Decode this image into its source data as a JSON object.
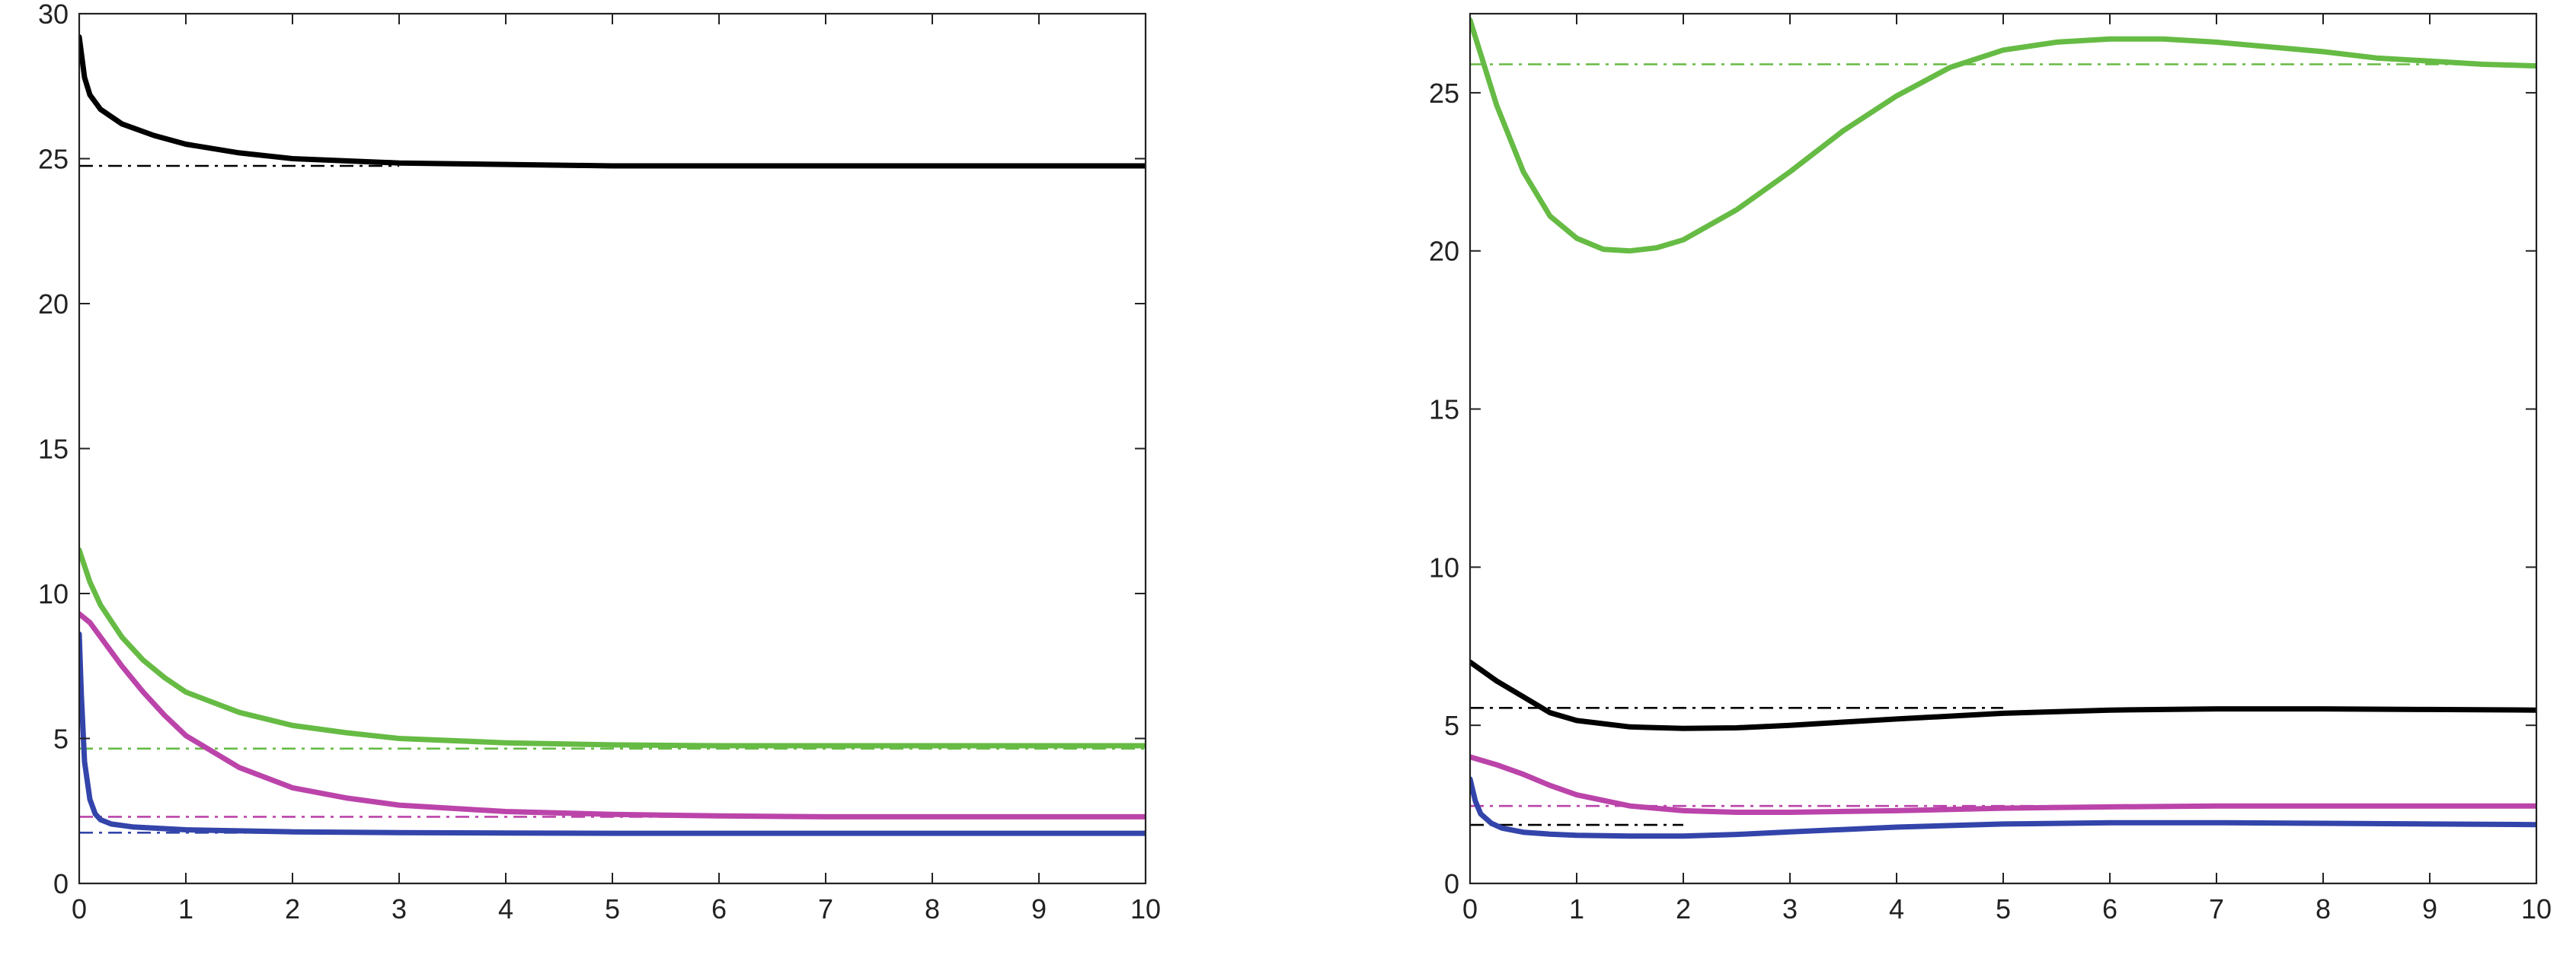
{
  "chart_data": [
    {
      "type": "line",
      "title": "",
      "xlabel": "",
      "ylabel": "",
      "xlim": [
        0,
        10
      ],
      "ylim": [
        0,
        30
      ],
      "xticks": [
        0,
        1,
        2,
        3,
        4,
        5,
        6,
        7,
        8,
        9,
        10
      ],
      "yticks": [
        0,
        5,
        10,
        15,
        20,
        25,
        30
      ],
      "grid": false,
      "legend": "none",
      "series": [
        {
          "color": "#000000",
          "style": "solid",
          "x": [
            0,
            0.05,
            0.1,
            0.2,
            0.4,
            0.7,
            1,
            1.5,
            2,
            3,
            4,
            5,
            6,
            7,
            8,
            9,
            10
          ],
          "y": [
            29.2,
            27.8,
            27.2,
            26.7,
            26.2,
            25.8,
            25.5,
            25.2,
            25.0,
            24.85,
            24.8,
            24.75,
            24.75,
            24.75,
            24.75,
            24.75,
            24.75
          ]
        },
        {
          "color": "#66bb44",
          "style": "solid",
          "x": [
            0,
            0.1,
            0.2,
            0.4,
            0.6,
            0.8,
            1,
            1.5,
            2,
            2.5,
            3,
            4,
            5,
            6,
            7,
            8,
            9,
            10
          ],
          "y": [
            11.5,
            10.4,
            9.6,
            8.5,
            7.7,
            7.1,
            6.6,
            5.9,
            5.45,
            5.2,
            5.0,
            4.85,
            4.78,
            4.75,
            4.75,
            4.75,
            4.75,
            4.75
          ]
        },
        {
          "color": "#bb44aa",
          "style": "solid",
          "x": [
            0,
            0.1,
            0.2,
            0.4,
            0.6,
            0.8,
            1,
            1.5,
            2,
            2.5,
            3,
            4,
            5,
            6,
            7,
            8,
            9,
            10
          ],
          "y": [
            9.3,
            9.0,
            8.5,
            7.5,
            6.6,
            5.8,
            5.1,
            4.0,
            3.3,
            2.95,
            2.7,
            2.48,
            2.38,
            2.33,
            2.3,
            2.3,
            2.3,
            2.3
          ]
        },
        {
          "color": "#3344aa",
          "style": "solid",
          "x": [
            0,
            0.02,
            0.05,
            0.1,
            0.15,
            0.2,
            0.3,
            0.5,
            1,
            2,
            3,
            4,
            5,
            6,
            7,
            8,
            9,
            10
          ],
          "y": [
            8.6,
            6.5,
            4.2,
            2.9,
            2.4,
            2.2,
            2.05,
            1.95,
            1.85,
            1.78,
            1.75,
            1.74,
            1.73,
            1.73,
            1.73,
            1.73,
            1.73,
            1.73
          ]
        },
        {
          "color": "#000000",
          "style": "dashdot",
          "x": [
            0,
            3
          ],
          "y": [
            24.75,
            24.75
          ]
        },
        {
          "color": "#66bb44",
          "style": "dashdot",
          "x": [
            0,
            10
          ],
          "y": [
            4.65,
            4.65
          ]
        },
        {
          "color": "#bb44aa",
          "style": "dashdot",
          "x": [
            0,
            10
          ],
          "y": [
            2.3,
            2.3
          ]
        },
        {
          "color": "#3344aa",
          "style": "dashdot",
          "x": [
            0,
            3
          ],
          "y": [
            1.75,
            1.75
          ]
        }
      ]
    },
    {
      "type": "line",
      "title": "",
      "xlabel": "",
      "ylabel": "",
      "xlim": [
        0,
        10
      ],
      "ylim": [
        0,
        27.5
      ],
      "xticks": [
        0,
        1,
        2,
        3,
        4,
        5,
        6,
        7,
        8,
        9,
        10
      ],
      "yticks": [
        0,
        5,
        10,
        15,
        20,
        25
      ],
      "grid": false,
      "legend": "none",
      "series": [
        {
          "color": "#66bb44",
          "style": "solid",
          "x": [
            0,
            0.25,
            0.5,
            0.75,
            1,
            1.25,
            1.5,
            1.75,
            2,
            2.5,
            3,
            3.5,
            4,
            4.5,
            5,
            5.5,
            6,
            6.5,
            7,
            7.5,
            8,
            8.5,
            9,
            9.5,
            10
          ],
          "y": [
            27.3,
            24.6,
            22.5,
            21.1,
            20.4,
            20.05,
            20.0,
            20.1,
            20.35,
            21.3,
            22.5,
            23.8,
            24.9,
            25.8,
            26.35,
            26.6,
            26.7,
            26.7,
            26.6,
            26.45,
            26.3,
            26.1,
            26.0,
            25.9,
            25.85
          ]
        },
        {
          "color": "#000000",
          "style": "solid",
          "x": [
            0,
            0.25,
            0.5,
            0.75,
            1,
            1.5,
            2,
            2.5,
            3,
            3.5,
            4,
            5,
            6,
            7,
            8,
            9,
            10
          ],
          "y": [
            7.0,
            6.4,
            5.9,
            5.4,
            5.15,
            4.95,
            4.9,
            4.92,
            5.0,
            5.1,
            5.2,
            5.38,
            5.48,
            5.52,
            5.52,
            5.5,
            5.48
          ]
        },
        {
          "color": "#bb44aa",
          "style": "solid",
          "x": [
            0,
            0.25,
            0.5,
            0.75,
            1,
            1.5,
            2,
            2.5,
            3,
            4,
            5,
            6,
            7,
            8,
            9,
            10
          ],
          "y": [
            4.0,
            3.75,
            3.45,
            3.1,
            2.8,
            2.45,
            2.3,
            2.25,
            2.25,
            2.3,
            2.38,
            2.42,
            2.45,
            2.45,
            2.45,
            2.45
          ]
        },
        {
          "color": "#3344aa",
          "style": "solid",
          "x": [
            0,
            0.05,
            0.1,
            0.2,
            0.3,
            0.5,
            0.75,
            1,
            1.5,
            2,
            2.5,
            3,
            4,
            5,
            6,
            7,
            8,
            9,
            10
          ],
          "y": [
            3.3,
            2.6,
            2.2,
            1.9,
            1.75,
            1.62,
            1.56,
            1.52,
            1.5,
            1.5,
            1.55,
            1.63,
            1.78,
            1.88,
            1.92,
            1.92,
            1.9,
            1.88,
            1.86
          ]
        },
        {
          "color": "#66bb44",
          "style": "dashdot",
          "x": [
            0,
            10
          ],
          "y": [
            25.9,
            25.9
          ]
        },
        {
          "color": "#000000",
          "style": "dashdot",
          "x": [
            0,
            5
          ],
          "y": [
            5.55,
            5.55
          ]
        },
        {
          "color": "#bb44aa",
          "style": "dashdot",
          "x": [
            0,
            10
          ],
          "y": [
            2.45,
            2.45
          ]
        },
        {
          "color": "#000000",
          "style": "dashdot",
          "x": [
            0,
            2
          ],
          "y": [
            1.85,
            1.85
          ]
        }
      ]
    }
  ]
}
